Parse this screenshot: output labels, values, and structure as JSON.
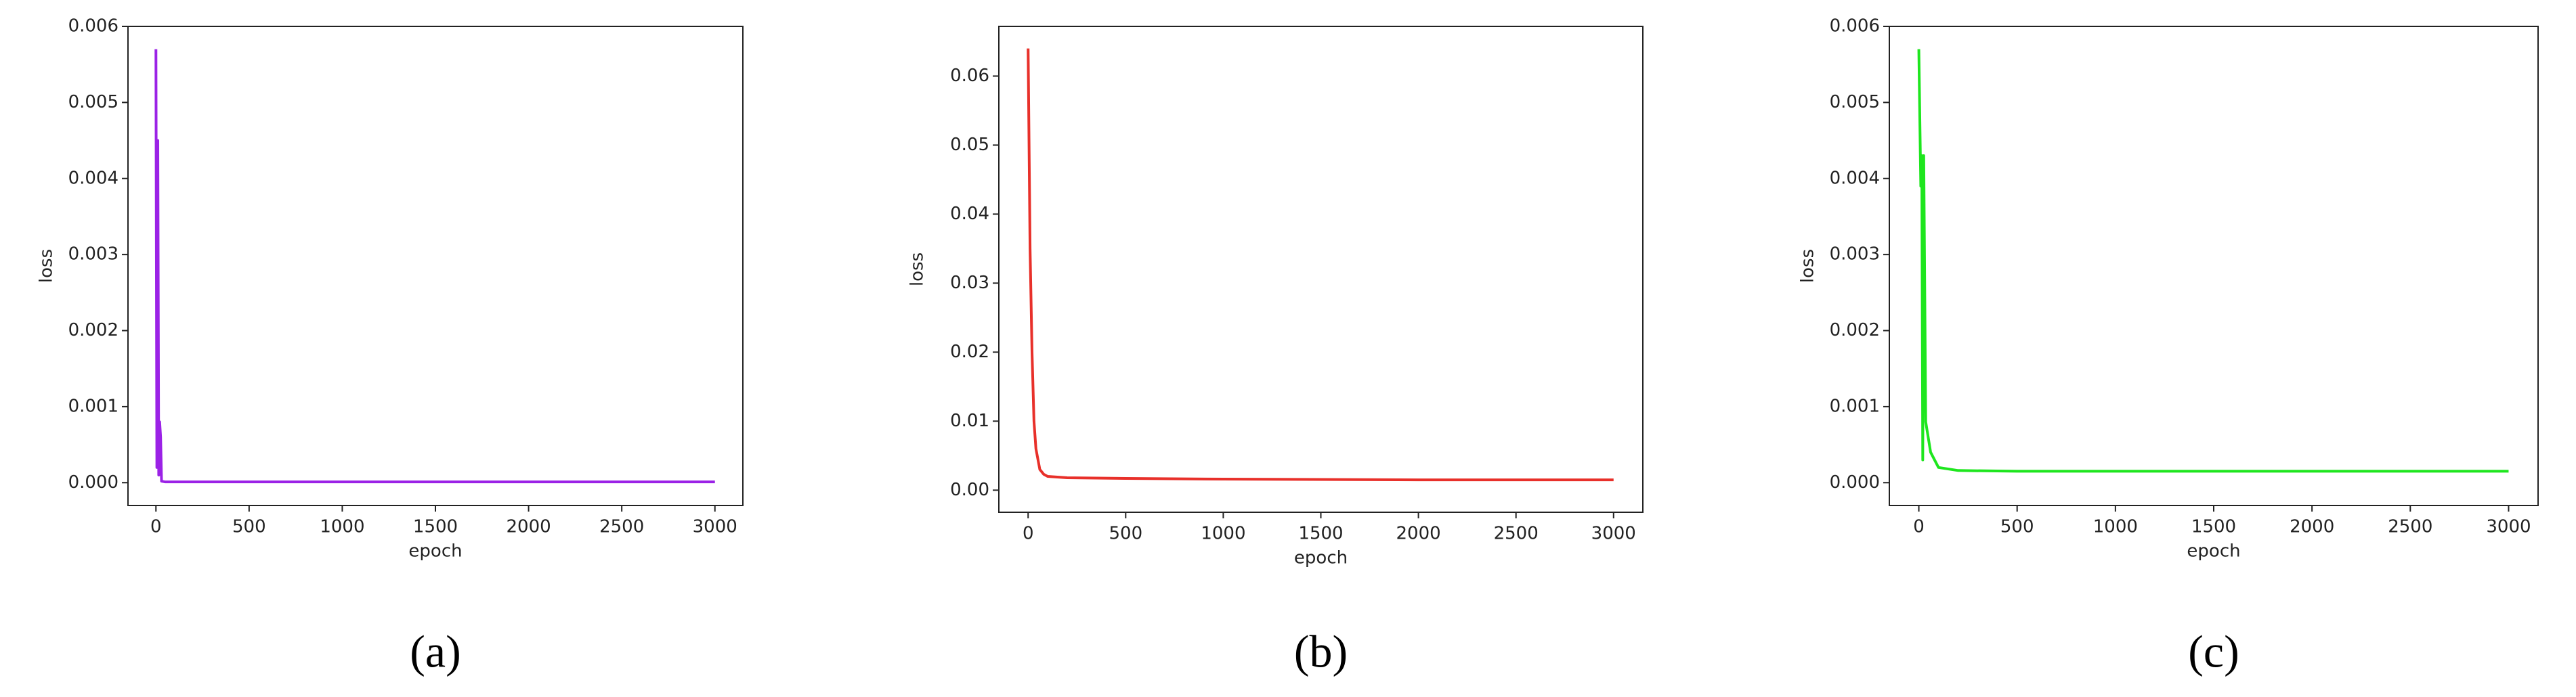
{
  "chart_data": [
    {
      "type": "line",
      "caption": "(a)",
      "xlabel": "epoch",
      "ylabel": "loss",
      "color": "#9b22e6",
      "x": [
        0,
        5,
        10,
        15,
        20,
        25,
        30,
        50,
        100,
        500,
        1000,
        1500,
        2000,
        2500,
        3000
      ],
      "values": [
        0.0057,
        0.0002,
        0.0045,
        0.0001,
        0.0008,
        0.0006,
        2e-05,
        1e-05,
        1e-05,
        1e-05,
        1e-05,
        1e-05,
        1e-05,
        1e-05,
        1e-05
      ],
      "xlim": [
        -150,
        3150
      ],
      "ylim": [
        -0.0003,
        0.006
      ],
      "xticks": [
        0,
        500,
        1000,
        1500,
        2000,
        2500,
        3000
      ],
      "yticks": [
        {
          "value": 0,
          "label": "0.000"
        },
        {
          "value": 0.001,
          "label": "0.001"
        },
        {
          "value": 0.002,
          "label": "0.002"
        },
        {
          "value": 0.003,
          "label": "0.003"
        },
        {
          "value": 0.004,
          "label": "0.004"
        },
        {
          "value": 0.005,
          "label": "0.005"
        },
        {
          "value": 0.006,
          "label": "0.006"
        }
      ]
    },
    {
      "type": "line",
      "caption": "(b)",
      "xlabel": "epoch",
      "ylabel": "loss",
      "color": "#e8302a",
      "x": [
        0,
        10,
        20,
        30,
        40,
        60,
        80,
        100,
        200,
        500,
        1000,
        2000,
        3000
      ],
      "values": [
        0.064,
        0.035,
        0.02,
        0.01,
        0.006,
        0.003,
        0.0023,
        0.002,
        0.0018,
        0.0017,
        0.0016,
        0.0015,
        0.0015
      ],
      "xlim": [
        -150,
        3150
      ],
      "ylim": [
        -0.0032,
        0.0672
      ],
      "xticks": [
        0,
        500,
        1000,
        1500,
        2000,
        2500,
        3000
      ],
      "yticks": [
        {
          "value": 0,
          "label": "0.00"
        },
        {
          "value": 0.01,
          "label": "0.01"
        },
        {
          "value": 0.02,
          "label": "0.02"
        },
        {
          "value": 0.03,
          "label": "0.03"
        },
        {
          "value": 0.04,
          "label": "0.04"
        },
        {
          "value": 0.05,
          "label": "0.05"
        },
        {
          "value": 0.06,
          "label": "0.06"
        }
      ]
    },
    {
      "type": "line",
      "caption": "(c)",
      "xlabel": "epoch",
      "ylabel": "loss",
      "color": "#1ee61e",
      "x": [
        0,
        10,
        15,
        20,
        25,
        35,
        60,
        100,
        200,
        500,
        1000,
        2000,
        3000
      ],
      "values": [
        0.0057,
        0.0039,
        0.0043,
        0.0003,
        0.0043,
        0.0008,
        0.0004,
        0.0002,
        0.00016,
        0.00015,
        0.00015,
        0.00015,
        0.00015
      ],
      "xlim": [
        -150,
        3150
      ],
      "ylim": [
        -0.0003,
        0.006
      ],
      "xticks": [
        0,
        500,
        1000,
        1500,
        2000,
        2500,
        3000
      ],
      "yticks": [
        {
          "value": 0,
          "label": "0.000"
        },
        {
          "value": 0.001,
          "label": "0.001"
        },
        {
          "value": 0.002,
          "label": "0.002"
        },
        {
          "value": 0.003,
          "label": "0.003"
        },
        {
          "value": 0.004,
          "label": "0.004"
        },
        {
          "value": 0.005,
          "label": "0.005"
        },
        {
          "value": 0.006,
          "label": "0.006"
        }
      ]
    }
  ]
}
